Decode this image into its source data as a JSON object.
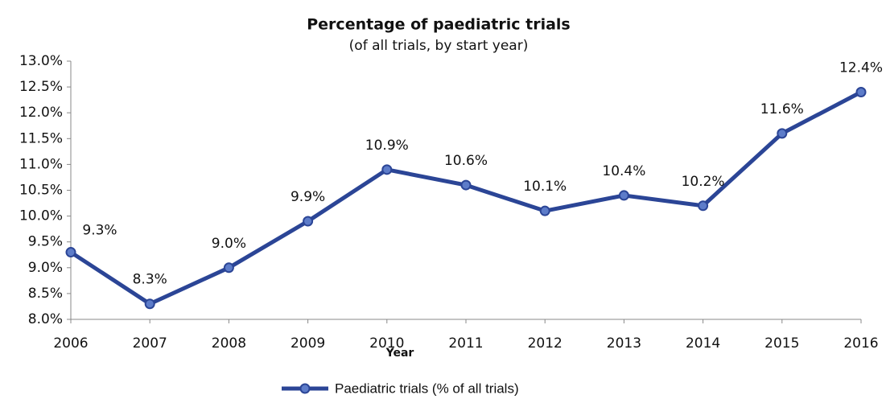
{
  "chart_data": {
    "type": "line",
    "title": "Percentage of paediatric trials",
    "subtitle": "(of all trials, by start year)",
    "x_label": "Year",
    "categories": [
      "2006",
      "2007",
      "2008",
      "2009",
      "2010",
      "2011",
      "2012",
      "2013",
      "2014",
      "2015",
      "2016"
    ],
    "series": [
      {
        "name": "Paediatric trials (% of all trials)",
        "color": "#2b4596",
        "values": [
          9.3,
          8.3,
          9.0,
          9.9,
          10.9,
          10.6,
          10.1,
          10.4,
          10.2,
          11.6,
          12.4
        ],
        "value_labels": [
          "9.3%",
          "8.3%",
          "9.0%",
          "9.9%",
          "10.9%",
          "10.6%",
          "10.1%",
          "10.4%",
          "10.2%",
          "11.6%",
          "12.4%"
        ]
      }
    ],
    "ylim": [
      8.0,
      13.0
    ],
    "yticks": [
      {
        "value": 8.0,
        "label": "8.0%"
      },
      {
        "value": 8.5,
        "label": "8.5%"
      },
      {
        "value": 9.0,
        "label": "9.0%"
      },
      {
        "value": 9.5,
        "label": "9.5%"
      },
      {
        "value": 10.0,
        "label": "10.0%"
      },
      {
        "value": 10.5,
        "label": "10.5%"
      },
      {
        "value": 11.0,
        "label": "11.0%"
      },
      {
        "value": 11.5,
        "label": "11.5%"
      },
      {
        "value": 12.0,
        "label": "12.0%"
      },
      {
        "value": 12.5,
        "label": "12.5%"
      },
      {
        "value": 13.0,
        "label": "13.0%"
      }
    ],
    "grid": false,
    "legend": "bottom"
  }
}
